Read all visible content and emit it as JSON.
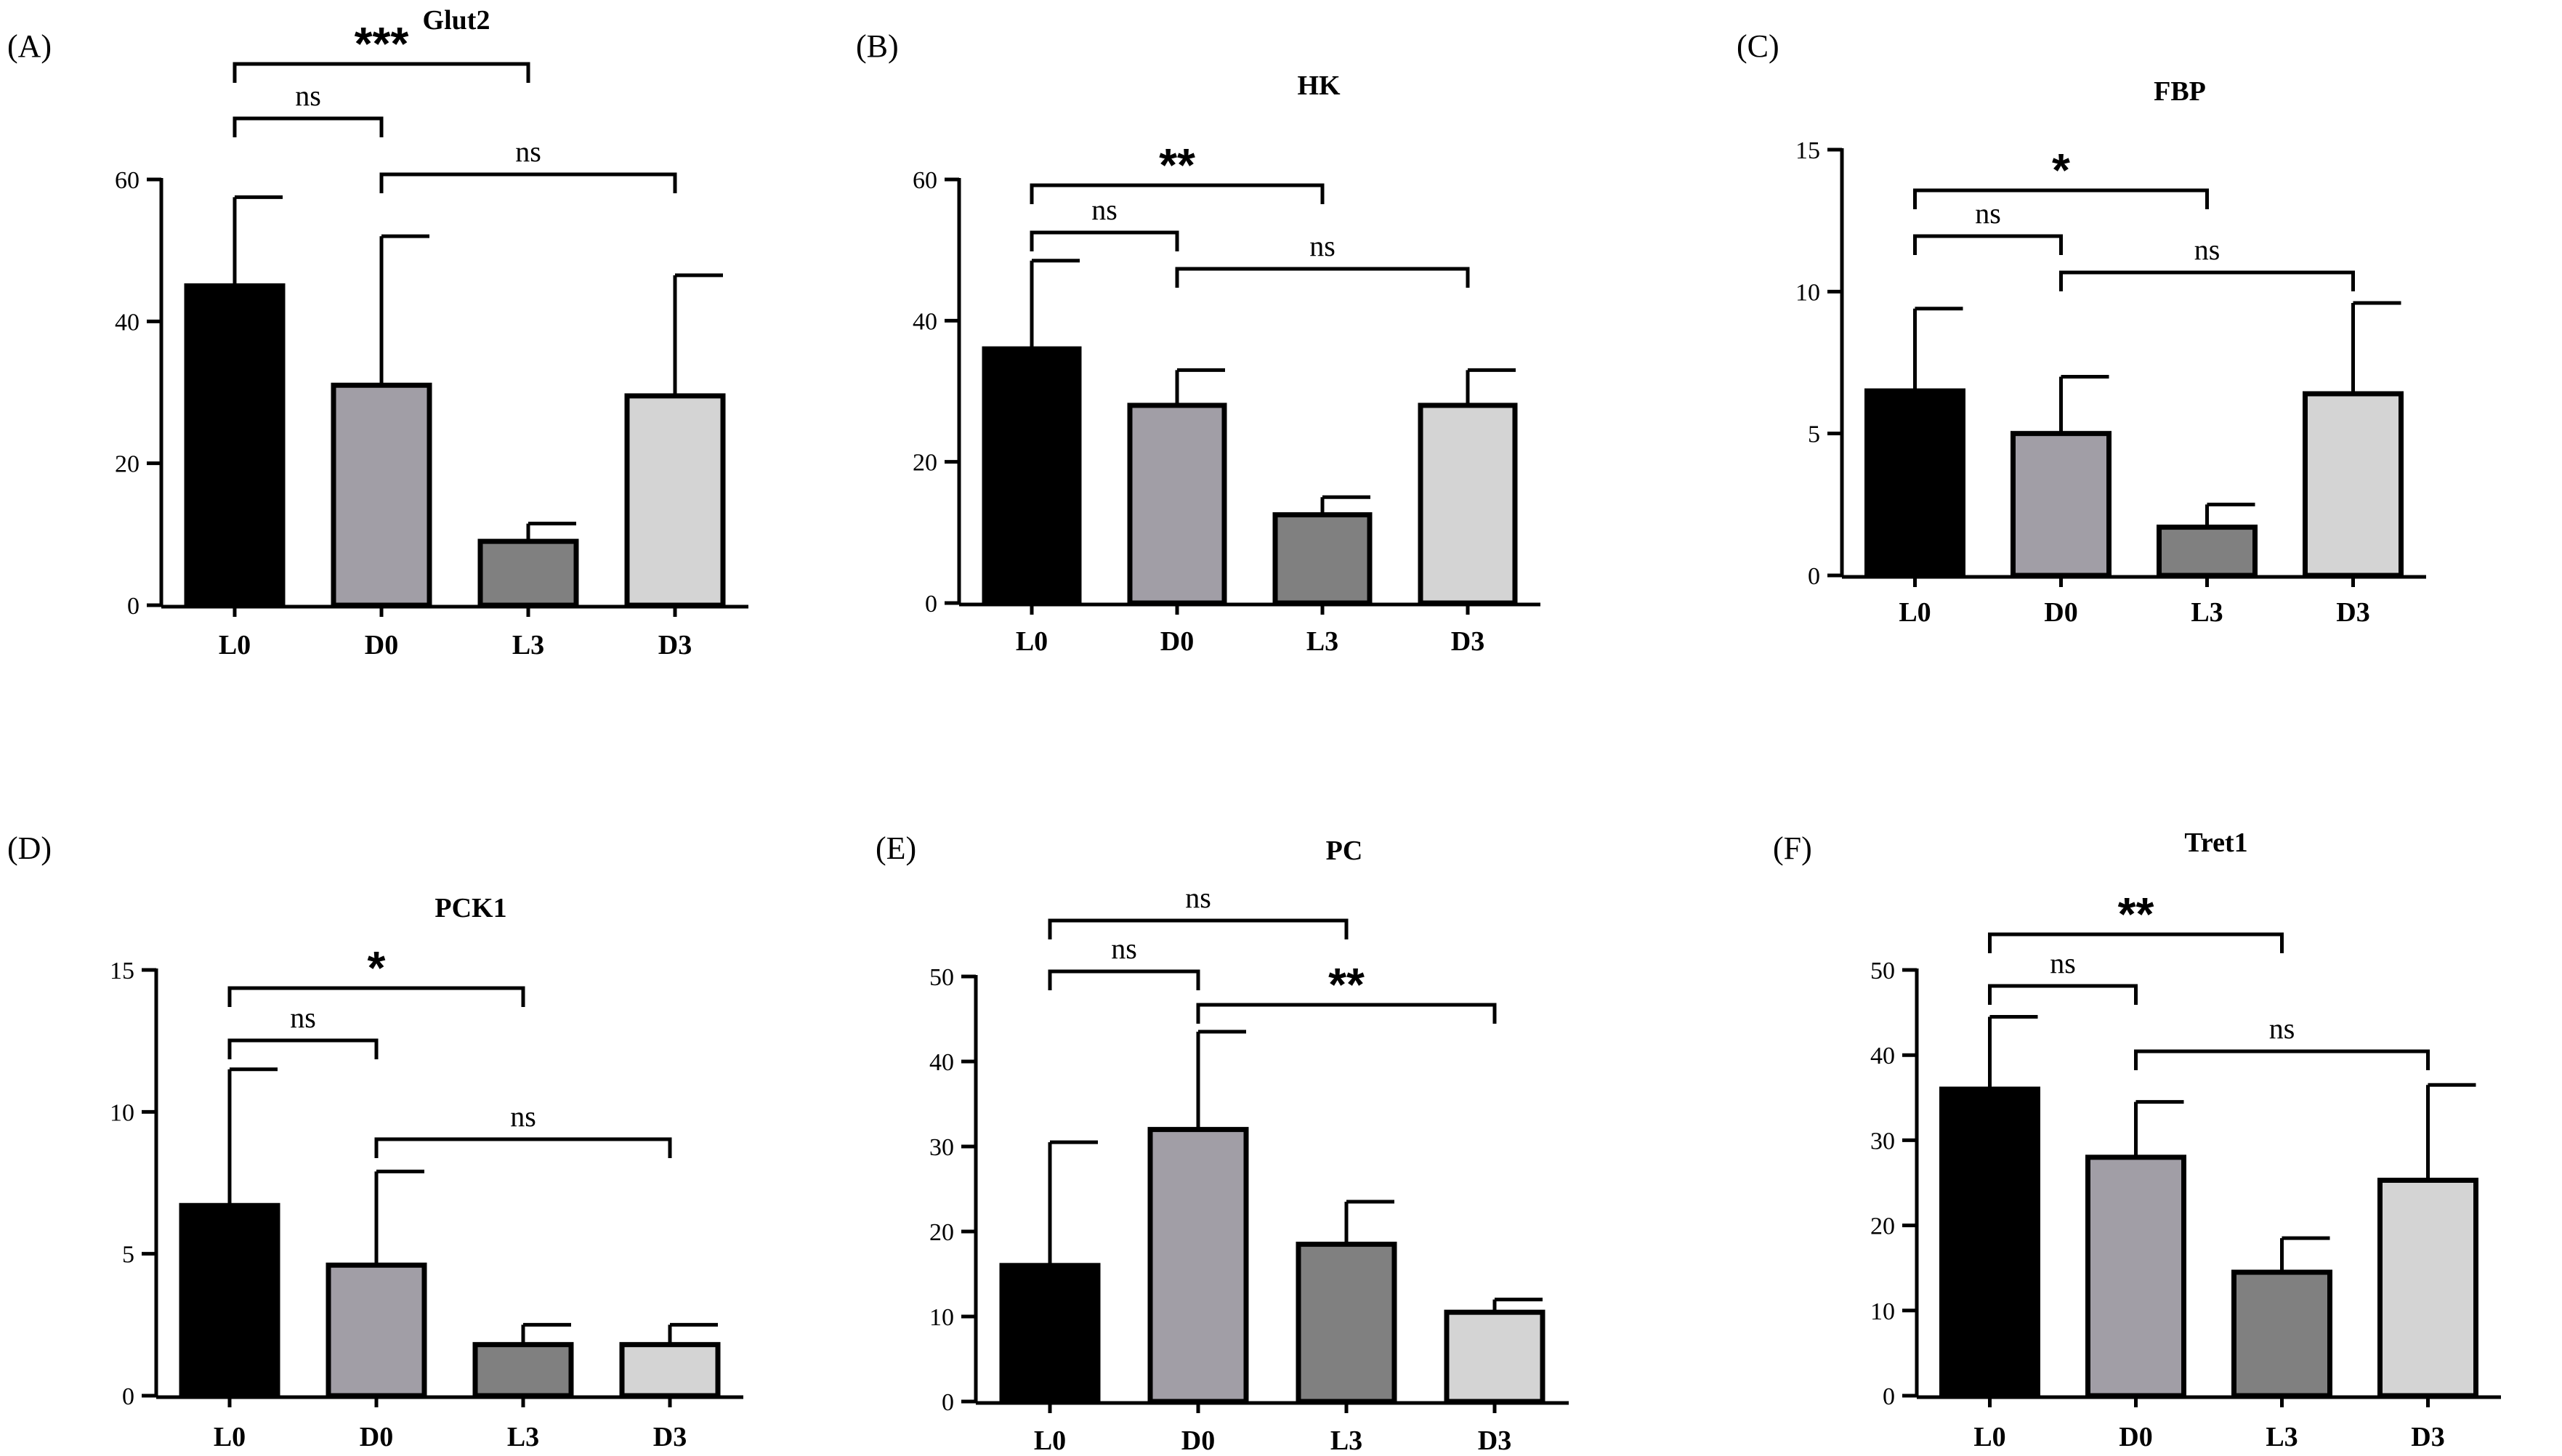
{
  "colors": {
    "L0": "#000000",
    "D0": "#a19ea6",
    "L3": "#808080",
    "D3": "#d4d4d4",
    "outline": "#000000"
  },
  "chart_data": [
    {
      "panel": "(A)",
      "title": "Glut2",
      "type": "bar",
      "categories": [
        "L0",
        "D0",
        "L3",
        "D3"
      ],
      "values": [
        45,
        31,
        9,
        29.5
      ],
      "errors": [
        57.5,
        52,
        11.5,
        46.5
      ],
      "ylim": [
        0,
        60
      ],
      "yticks": [
        0,
        20,
        40,
        60
      ],
      "comparisons": [
        {
          "from": 0,
          "to": 2,
          "label": "***",
          "level": 2
        },
        {
          "from": 0,
          "to": 1,
          "label": "ns",
          "level": 1
        },
        {
          "from": 1,
          "to": 3,
          "label": "ns",
          "level": 0
        }
      ]
    },
    {
      "panel": "(B)",
      "title": "HK",
      "type": "bar",
      "categories": [
        "L0",
        "D0",
        "L3",
        "D3"
      ],
      "values": [
        36,
        28,
        12.5,
        28
      ],
      "errors": [
        48.5,
        33,
        15,
        33
      ],
      "ylim": [
        0,
        60
      ],
      "yticks": [
        0,
        20,
        40,
        60
      ],
      "comparisons": [
        {
          "from": 0,
          "to": 2,
          "label": "**",
          "level": 2
        },
        {
          "from": 0,
          "to": 1,
          "label": "ns",
          "level": 1
        },
        {
          "from": 1,
          "to": 3,
          "label": "ns",
          "level": 0
        }
      ]
    },
    {
      "panel": "(C)",
      "title": "FBP",
      "type": "bar",
      "categories": [
        "L0",
        "D0",
        "L3",
        "D3"
      ],
      "values": [
        6.5,
        5,
        1.7,
        6.4
      ],
      "errors": [
        9.4,
        7,
        2.5,
        9.6
      ],
      "ylim": [
        0,
        15
      ],
      "yticks": [
        0,
        5,
        10,
        15
      ],
      "comparisons": [
        {
          "from": 0,
          "to": 2,
          "label": "*",
          "level": 2
        },
        {
          "from": 0,
          "to": 1,
          "label": "ns",
          "level": 1
        },
        {
          "from": 1,
          "to": 3,
          "label": "ns",
          "level": 0
        }
      ]
    },
    {
      "panel": "(D)",
      "title": "PCK1",
      "type": "bar",
      "categories": [
        "L0",
        "D0",
        "L3",
        "D3"
      ],
      "values": [
        6.7,
        4.6,
        1.8,
        1.8
      ],
      "errors": [
        11.5,
        7.9,
        2.5,
        2.5
      ],
      "ylim": [
        0,
        15
      ],
      "yticks": [
        0,
        5,
        10,
        15
      ],
      "comparisons": [
        {
          "from": 0,
          "to": 2,
          "label": "*",
          "level": 2
        },
        {
          "from": 0,
          "to": 1,
          "label": "ns",
          "level": 1
        },
        {
          "from": 1,
          "to": 3,
          "label": "ns",
          "level": 0
        }
      ]
    },
    {
      "panel": "(E)",
      "title": "PC",
      "type": "bar",
      "categories": [
        "L0",
        "D0",
        "L3",
        "D3"
      ],
      "values": [
        16,
        32,
        18.5,
        10.5
      ],
      "errors": [
        30.5,
        43.5,
        23.5,
        12
      ],
      "ylim": [
        0,
        50
      ],
      "yticks": [
        0,
        10,
        20,
        30,
        40,
        50
      ],
      "comparisons": [
        {
          "from": 0,
          "to": 2,
          "label": "ns",
          "level": 2
        },
        {
          "from": 0,
          "to": 1,
          "label": "ns",
          "level": 1
        },
        {
          "from": 1,
          "to": 3,
          "label": "**",
          "level": 0
        }
      ]
    },
    {
      "panel": "(F)",
      "title": "Tret1",
      "type": "bar",
      "categories": [
        "L0",
        "D0",
        "L3",
        "D3"
      ],
      "values": [
        36,
        28,
        14.5,
        25.3
      ],
      "errors": [
        44.5,
        34.5,
        18.5,
        36.5
      ],
      "ylim": [
        0,
        50
      ],
      "yticks": [
        0,
        10,
        20,
        30,
        40,
        50
      ],
      "comparisons": [
        {
          "from": 0,
          "to": 2,
          "label": "**",
          "level": 2
        },
        {
          "from": 0,
          "to": 1,
          "label": "ns",
          "level": 1
        },
        {
          "from": 1,
          "to": 3,
          "label": "ns",
          "level": 0
        }
      ]
    }
  ]
}
